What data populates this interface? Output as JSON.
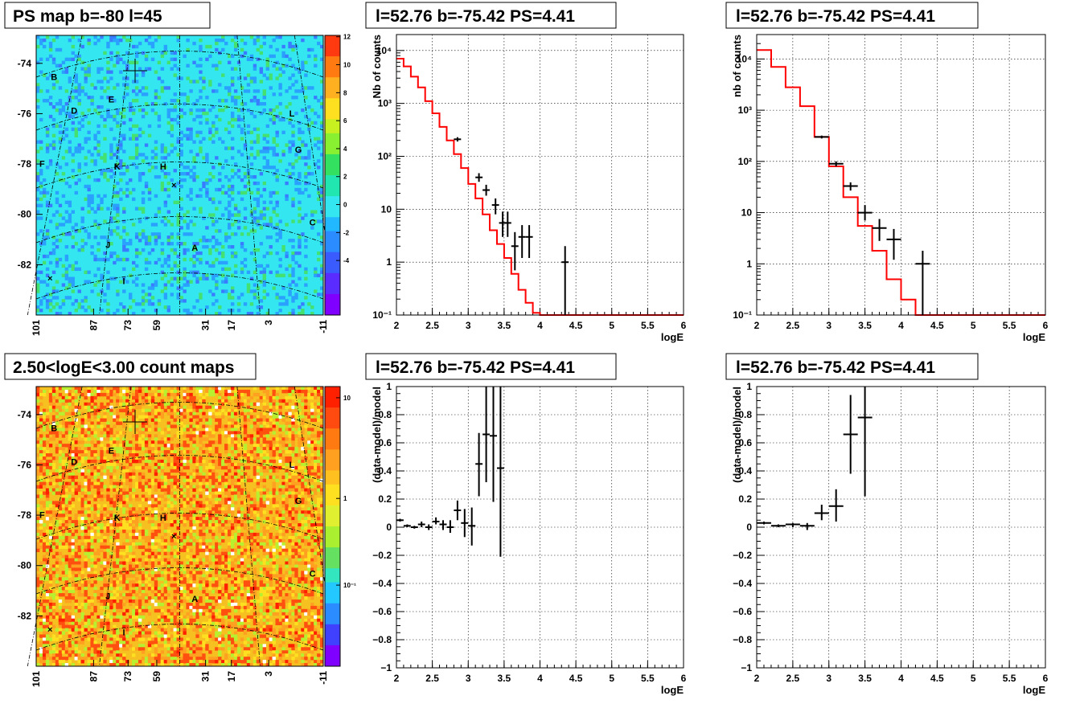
{
  "maps": [
    {
      "title": "PS map b=-80 l=45",
      "y_ticks": [
        "-74",
        "-76",
        "-78",
        "-80",
        "-82"
      ],
      "x_ticks": [
        "101",
        "87",
        "73",
        "59",
        "31",
        "17",
        "3",
        "-11"
      ],
      "region_labels": [
        "A",
        "B",
        "C",
        "D",
        "E",
        "F",
        "G",
        "H",
        "I",
        "J",
        "K",
        "L"
      ],
      "colorbar_ticks": [
        "12",
        "10",
        "8",
        "6",
        "4",
        "2",
        "0",
        "-2",
        "-4"
      ],
      "palette": "ps",
      "base_color": "#33e6f0"
    },
    {
      "title": "2.50<logE<3.00 count maps",
      "y_ticks": [
        "-74",
        "-76",
        "-78",
        "-80",
        "-82"
      ],
      "x_ticks": [
        "101",
        "87",
        "73",
        "59",
        "31",
        "17",
        "3",
        "-11"
      ],
      "region_labels": [
        "A",
        "B",
        "C",
        "D",
        "E",
        "F",
        "G",
        "H",
        "I",
        "J",
        "K",
        "L"
      ],
      "colorbar_ticks": [
        "10",
        "1",
        "10⁻¹"
      ],
      "palette": "count",
      "base_color": "#f5c020"
    }
  ],
  "chart_data": [
    {
      "type": "line",
      "title": "l=52.76 b=-75.42 PS=4.41",
      "xlabel": "logE",
      "ylabel": "Nb of counts",
      "xlim": [
        2,
        6
      ],
      "ylim": [
        0.1,
        20000
      ],
      "yscale": "log",
      "grid": true,
      "x_ticks": [
        "2",
        "2.5",
        "3",
        "3.5",
        "4",
        "4.5",
        "5",
        "5.5",
        "6"
      ],
      "y_ticks": [
        "10⁻¹",
        "1",
        "10",
        "10²",
        "10³",
        "10⁴"
      ],
      "model_step": {
        "edges": [
          2.0,
          2.1,
          2.2,
          2.3,
          2.4,
          2.5,
          2.6,
          2.7,
          2.8,
          2.9,
          3.0,
          3.1,
          3.2,
          3.3,
          3.4,
          3.5,
          3.6,
          3.7,
          3.8,
          3.9,
          4.0,
          4.1,
          6.0
        ],
        "values": [
          7000,
          5000,
          3200,
          2000,
          1100,
          650,
          360,
          200,
          110,
          60,
          30,
          16,
          8,
          4,
          2.2,
          1.2,
          0.6,
          0.3,
          0.17,
          0.11,
          0.1,
          0.1
        ]
      },
      "points": [
        {
          "x": 2.85,
          "y": 210,
          "xerr": 0.05,
          "ylo": 190,
          "yhi": 230
        },
        {
          "x": 3.15,
          "y": 40,
          "xerr": 0.05,
          "ylo": 33,
          "yhi": 48
        },
        {
          "x": 3.25,
          "y": 23,
          "xerr": 0.05,
          "ylo": 18,
          "yhi": 29
        },
        {
          "x": 3.38,
          "y": 12,
          "xerr": 0.05,
          "ylo": 8,
          "yhi": 16
        },
        {
          "x": 3.48,
          "y": 5.5,
          "xerr": 0.05,
          "ylo": 3,
          "yhi": 9
        },
        {
          "x": 3.55,
          "y": 5.5,
          "xerr": 0.05,
          "ylo": 3,
          "yhi": 9
        },
        {
          "x": 3.65,
          "y": 2,
          "xerr": 0.05,
          "ylo": 0.7,
          "yhi": 3.7
        },
        {
          "x": 3.75,
          "y": 3,
          "xerr": 0.05,
          "ylo": 1.2,
          "yhi": 5
        },
        {
          "x": 3.85,
          "y": 3,
          "xerr": 0.05,
          "ylo": 1.2,
          "yhi": 5
        },
        {
          "x": 4.35,
          "y": 1,
          "xerr": 0.05,
          "ylo": 0.1,
          "yhi": 2
        }
      ]
    },
    {
      "type": "line",
      "title": "l=52.76 b=-75.42 PS=4.41",
      "xlabel": "logE",
      "ylabel": "nb of counts",
      "xlim": [
        2,
        6
      ],
      "ylim": [
        0.1,
        30000
      ],
      "yscale": "log",
      "grid": true,
      "x_ticks": [
        "2",
        "2.5",
        "3",
        "3.5",
        "4",
        "4.5",
        "5",
        "5.5",
        "6"
      ],
      "y_ticks": [
        "10⁻¹",
        "1",
        "10",
        "10²",
        "10³",
        "10⁴"
      ],
      "model_step": {
        "edges": [
          2.0,
          2.2,
          2.4,
          2.6,
          2.8,
          3.0,
          3.2,
          3.4,
          3.6,
          3.8,
          4.0,
          4.2,
          6.0
        ],
        "values": [
          15000,
          7000,
          2800,
          1200,
          300,
          80,
          20,
          5.5,
          1.8,
          0.5,
          0.2,
          0.1
        ]
      },
      "points": [
        {
          "x": 2.9,
          "y": 300,
          "xerr": 0.1,
          "ylo": 280,
          "yhi": 320
        },
        {
          "x": 3.1,
          "y": 90,
          "xerr": 0.1,
          "ylo": 80,
          "yhi": 100
        },
        {
          "x": 3.3,
          "y": 33,
          "xerr": 0.1,
          "ylo": 27,
          "yhi": 39
        },
        {
          "x": 3.5,
          "y": 10,
          "xerr": 0.1,
          "ylo": 7,
          "yhi": 14
        },
        {
          "x": 3.7,
          "y": 5,
          "xerr": 0.1,
          "ylo": 2.8,
          "yhi": 7.5
        },
        {
          "x": 3.9,
          "y": 3,
          "xerr": 0.1,
          "ylo": 1.2,
          "yhi": 4.8
        },
        {
          "x": 4.3,
          "y": 1,
          "xerr": 0.1,
          "ylo": 0.1,
          "yhi": 1.8
        }
      ]
    },
    {
      "type": "scatter",
      "title": "l=52.76 b=-75.42 PS=4.41",
      "xlabel": "logE",
      "ylabel": "(data-model)/model",
      "xlim": [
        2,
        6
      ],
      "ylim": [
        -1,
        1
      ],
      "yscale": "linear",
      "grid": true,
      "x_ticks": [
        "2",
        "2.5",
        "3",
        "3.5",
        "4",
        "4.5",
        "5",
        "5.5",
        "6"
      ],
      "y_ticks": [
        "−1",
        "−0.8",
        "−0.6",
        "−0.4",
        "−0.2",
        "0",
        "0.2",
        "0.4",
        "0.6",
        "0.8",
        "1"
      ],
      "points": [
        {
          "x": 2.05,
          "y": 0.05,
          "xerr": 0.05,
          "ylo": 0.04,
          "yhi": 0.06
        },
        {
          "x": 2.15,
          "y": 0.01,
          "xerr": 0.05,
          "ylo": 0.0,
          "yhi": 0.02
        },
        {
          "x": 2.25,
          "y": 0.0,
          "xerr": 0.05,
          "ylo": -0.01,
          "yhi": 0.01
        },
        {
          "x": 2.35,
          "y": 0.02,
          "xerr": 0.05,
          "ylo": 0.0,
          "yhi": 0.04
        },
        {
          "x": 2.45,
          "y": 0.0,
          "xerr": 0.05,
          "ylo": -0.02,
          "yhi": 0.02
        },
        {
          "x": 2.55,
          "y": 0.04,
          "xerr": 0.05,
          "ylo": 0.02,
          "yhi": 0.07
        },
        {
          "x": 2.65,
          "y": 0.02,
          "xerr": 0.05,
          "ylo": -0.02,
          "yhi": 0.05
        },
        {
          "x": 2.75,
          "y": 0.0,
          "xerr": 0.05,
          "ylo": -0.04,
          "yhi": 0.05
        },
        {
          "x": 2.85,
          "y": 0.12,
          "xerr": 0.05,
          "ylo": 0.05,
          "yhi": 0.19
        },
        {
          "x": 2.95,
          "y": 0.03,
          "xerr": 0.05,
          "ylo": -0.07,
          "yhi": 0.13
        },
        {
          "x": 3.05,
          "y": 0.01,
          "xerr": 0.05,
          "ylo": -0.13,
          "yhi": 0.14
        },
        {
          "x": 3.15,
          "y": 0.45,
          "xerr": 0.05,
          "ylo": 0.22,
          "yhi": 0.67
        },
        {
          "x": 3.25,
          "y": 0.66,
          "xerr": 0.05,
          "ylo": 0.32,
          "yhi": 1.0
        },
        {
          "x": 3.35,
          "y": 0.65,
          "xerr": 0.05,
          "ylo": 0.18,
          "yhi": 1.0
        },
        {
          "x": 3.45,
          "y": 0.42,
          "xerr": 0.05,
          "ylo": -0.21,
          "yhi": 1.0
        }
      ]
    },
    {
      "type": "scatter",
      "title": "l=52.76 b=-75.42 PS=4.41",
      "xlabel": "logE",
      "ylabel": "(data-model)/model",
      "xlim": [
        2,
        6
      ],
      "ylim": [
        -1,
        1
      ],
      "yscale": "linear",
      "grid": true,
      "x_ticks": [
        "2",
        "2.5",
        "3",
        "3.5",
        "4",
        "4.5",
        "5",
        "5.5",
        "6"
      ],
      "y_ticks": [
        "−1",
        "−0.8",
        "−0.6",
        "−0.4",
        "−0.2",
        "0",
        "0.2",
        "0.4",
        "0.6",
        "0.8",
        "1"
      ],
      "points": [
        {
          "x": 2.1,
          "y": 0.03,
          "xerr": 0.1,
          "ylo": 0.02,
          "yhi": 0.04
        },
        {
          "x": 2.3,
          "y": 0.01,
          "xerr": 0.1,
          "ylo": 0.0,
          "yhi": 0.02
        },
        {
          "x": 2.5,
          "y": 0.02,
          "xerr": 0.1,
          "ylo": 0.0,
          "yhi": 0.03
        },
        {
          "x": 2.7,
          "y": 0.01,
          "xerr": 0.1,
          "ylo": -0.02,
          "yhi": 0.03
        },
        {
          "x": 2.9,
          "y": 0.1,
          "xerr": 0.1,
          "ylo": 0.05,
          "yhi": 0.16
        },
        {
          "x": 3.1,
          "y": 0.15,
          "xerr": 0.1,
          "ylo": 0.04,
          "yhi": 0.27
        },
        {
          "x": 3.3,
          "y": 0.66,
          "xerr": 0.1,
          "ylo": 0.38,
          "yhi": 0.94
        },
        {
          "x": 3.5,
          "y": 0.78,
          "xerr": 0.1,
          "ylo": 0.22,
          "yhi": 1.0
        }
      ]
    }
  ]
}
